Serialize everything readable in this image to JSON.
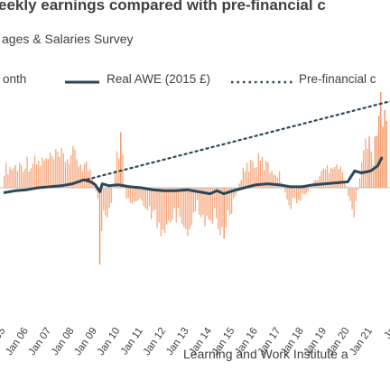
{
  "title": "eekly earnings compared with pre-financial c",
  "subtitle": "ages & Salaries Survey",
  "legend": {
    "month_label": "onth",
    "real_awe_label": "Real AWE (2015 £)",
    "prefinancial_label": "Pre-financial c"
  },
  "source": "Learning and Work Institute a",
  "colors": {
    "bars": "#f4a77c",
    "bars_negative_spike": "#ef8a55",
    "real_awe": "#2b4656",
    "trend": "#2b4656",
    "axis": "#bfbfbf"
  },
  "chart_data": {
    "type": "bar+line",
    "x_ticks": [
      "05",
      "Jan 06",
      "Jan 07",
      "Jan 08",
      "Jan 09",
      "Jan 10",
      "Jan 11",
      "Jan 12",
      "Jan 13",
      "Jan 14",
      "Jan 15",
      "Jan 16",
      "Jan 17",
      "Jan 18",
      "Jan 19",
      "Jan 20",
      "Jan 21",
      "Ja"
    ],
    "x_start_year": 2005.0,
    "x_end_year": 2022.0,
    "series": [
      {
        "name": "Real AWE (2015 £)",
        "style": "solid",
        "values_relative": [
          [
            2005.0,
            -0.5
          ],
          [
            2005.5,
            -0.3
          ],
          [
            2006.0,
            -0.2
          ],
          [
            2006.5,
            0.0
          ],
          [
            2007.0,
            0.1
          ],
          [
            2007.5,
            0.2
          ],
          [
            2008.0,
            0.4
          ],
          [
            2008.5,
            0.8
          ],
          [
            2008.8,
            0.6
          ],
          [
            2009.0,
            0.3
          ],
          [
            2009.2,
            -0.4
          ],
          [
            2009.3,
            0.4
          ],
          [
            2009.6,
            0.2
          ],
          [
            2010.0,
            0.3
          ],
          [
            2010.5,
            0.1
          ],
          [
            2011.0,
            0.0
          ],
          [
            2011.5,
            -0.2
          ],
          [
            2012.0,
            -0.3
          ],
          [
            2012.5,
            -0.3
          ],
          [
            2013.0,
            -0.2
          ],
          [
            2013.5,
            -0.4
          ],
          [
            2014.0,
            -0.6
          ],
          [
            2014.3,
            -0.3
          ],
          [
            2014.6,
            -0.6
          ],
          [
            2015.0,
            -0.3
          ],
          [
            2015.5,
            0.0
          ],
          [
            2016.0,
            0.3
          ],
          [
            2016.5,
            0.4
          ],
          [
            2017.0,
            0.3
          ],
          [
            2017.5,
            0.1
          ],
          [
            2018.0,
            0.1
          ],
          [
            2018.5,
            0.3
          ],
          [
            2019.0,
            0.4
          ],
          [
            2019.5,
            0.5
          ],
          [
            2020.0,
            0.6
          ],
          [
            2020.3,
            1.7
          ],
          [
            2020.6,
            1.5
          ],
          [
            2021.0,
            1.7
          ],
          [
            2021.3,
            2.2
          ],
          [
            2021.5,
            3.1
          ]
        ]
      },
      {
        "name": "Pre-financial c",
        "style": "dotted",
        "values_relative": [
          [
            2008.4,
            0.7
          ],
          [
            2022.0,
            8.8
          ]
        ]
      }
    ],
    "monthly_change": {
      "name": "onth",
      "values_relative": [
        [
          2005.0,
          2.2
        ],
        [
          2005.5,
          2.5
        ],
        [
          2006.0,
          3.0
        ],
        [
          2006.5,
          2.9
        ],
        [
          2007.0,
          3.3
        ],
        [
          2007.5,
          3.5
        ],
        [
          2008.0,
          3.7
        ],
        [
          2008.3,
          3.0
        ],
        [
          2008.6,
          2.6
        ],
        [
          2008.9,
          1.0
        ],
        [
          2009.1,
          -2.0
        ],
        [
          2009.2,
          -10.6
        ],
        [
          2009.3,
          -3.5
        ],
        [
          2009.6,
          -3.2
        ],
        [
          2009.9,
          3.3
        ],
        [
          2010.1,
          5.8
        ],
        [
          2010.3,
          -1.8
        ],
        [
          2010.7,
          -1.5
        ],
        [
          2011.0,
          -1.2
        ],
        [
          2011.4,
          -3.2
        ],
        [
          2011.8,
          -4.5
        ],
        [
          2012.2,
          -3.8
        ],
        [
          2012.6,
          -3.2
        ],
        [
          2013.0,
          -4.4
        ],
        [
          2013.4,
          -2.0
        ],
        [
          2013.8,
          -3.8
        ],
        [
          2014.2,
          -3.0
        ],
        [
          2014.6,
          -5.2
        ],
        [
          2015.0,
          -1.5
        ],
        [
          2015.4,
          2.0
        ],
        [
          2015.8,
          3.0
        ],
        [
          2016.2,
          3.1
        ],
        [
          2016.6,
          2.2
        ],
        [
          2017.0,
          1.5
        ],
        [
          2017.4,
          -2.1
        ],
        [
          2017.8,
          -1.5
        ],
        [
          2018.2,
          -0.5
        ],
        [
          2018.6,
          1.0
        ],
        [
          2019.0,
          2.2
        ],
        [
          2019.4,
          3.2
        ],
        [
          2019.8,
          1.5
        ],
        [
          2020.1,
          -1.8
        ],
        [
          2020.3,
          -3.2
        ],
        [
          2020.6,
          4.0
        ],
        [
          2020.9,
          5.3
        ],
        [
          2021.1,
          3.7
        ],
        [
          2021.3,
          6.3
        ],
        [
          2021.45,
          10.6
        ],
        [
          2021.6,
          7.5
        ]
      ]
    },
    "y_zero_note": "",
    "grid": false,
    "legend_position": "top"
  }
}
